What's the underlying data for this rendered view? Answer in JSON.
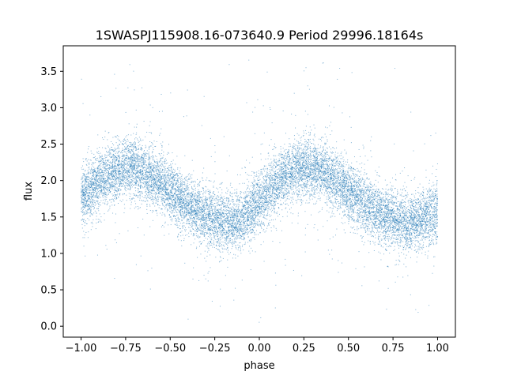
{
  "chart_data": {
    "type": "scatter",
    "title": "1SWASPJ115908.16-073640.9 Period 29996.18164s",
    "xlabel": "phase",
    "ylabel": "flux",
    "xlim": [
      -1.1,
      1.1
    ],
    "ylim": [
      -0.15,
      3.85
    ],
    "x_ticks": [
      -1.0,
      -0.75,
      -0.5,
      -0.25,
      0.0,
      0.25,
      0.5,
      0.75,
      1.0
    ],
    "x_tick_labels": [
      "−1.00",
      "−0.75",
      "−0.50",
      "−0.25",
      "0.00",
      "0.25",
      "0.50",
      "0.75",
      "1.00"
    ],
    "y_ticks": [
      0.0,
      0.5,
      1.0,
      1.5,
      2.0,
      2.5,
      3.0,
      3.5
    ],
    "y_tick_labels": [
      "0.0",
      "0.5",
      "1.0",
      "1.5",
      "2.0",
      "2.5",
      "3.0",
      "3.5"
    ],
    "grid": false,
    "series": [
      {
        "color": "#1f77b4",
        "x_range": [
          -1.0,
          1.0
        ],
        "trend_phase": [
          -1.0,
          -0.9,
          -0.8,
          -0.75,
          -0.7,
          -0.6,
          -0.5,
          -0.4,
          -0.3,
          -0.2,
          -0.15,
          -0.1,
          0.0,
          0.1,
          0.2,
          0.25,
          0.3,
          0.4,
          0.5,
          0.6,
          0.7,
          0.8,
          0.85,
          0.9,
          1.0
        ],
        "trend_flux": [
          1.75,
          1.98,
          2.15,
          2.2,
          2.18,
          2.05,
          1.85,
          1.65,
          1.5,
          1.42,
          1.4,
          1.45,
          1.7,
          1.98,
          2.15,
          2.2,
          2.18,
          2.05,
          1.85,
          1.65,
          1.52,
          1.44,
          1.42,
          1.45,
          1.55
        ]
      }
    ]
  }
}
